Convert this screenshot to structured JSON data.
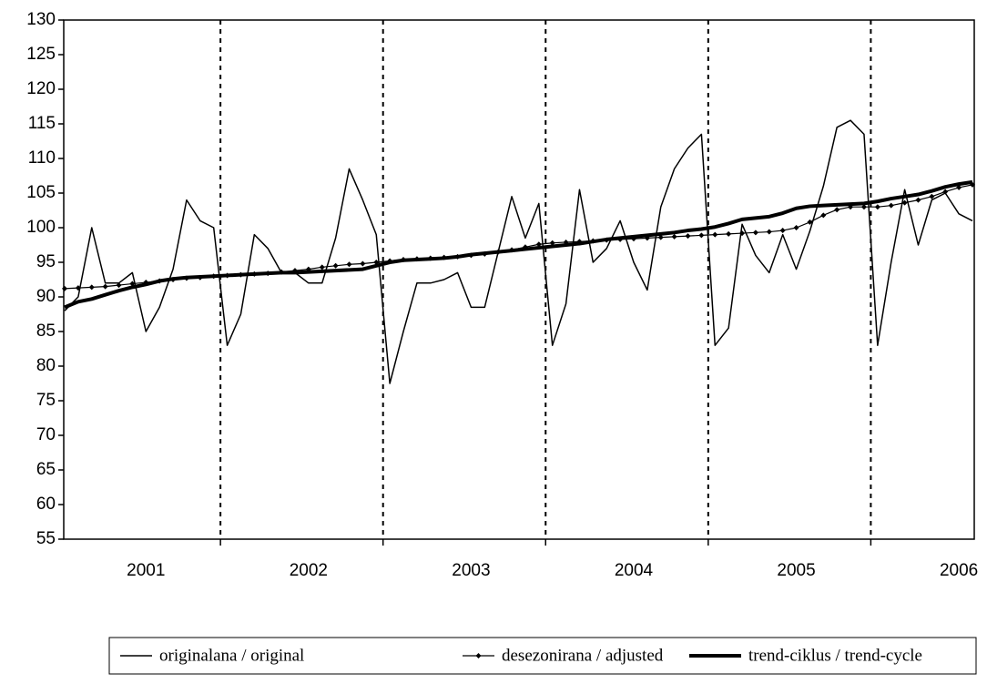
{
  "chart_data": {
    "type": "line",
    "categories": [
      null,
      null,
      null,
      null,
      null,
      null,
      "2001",
      null,
      null,
      null,
      null,
      null,
      null,
      null,
      null,
      null,
      null,
      null,
      "2002",
      null,
      null,
      null,
      null,
      null,
      null,
      null,
      null,
      null,
      null,
      null,
      "2003",
      null,
      null,
      null,
      null,
      null,
      null,
      null,
      null,
      null,
      null,
      null,
      "2004",
      null,
      null,
      null,
      null,
      null,
      null,
      null,
      null,
      null,
      null,
      null,
      "2005",
      null,
      null,
      null,
      null,
      null,
      null,
      null,
      null,
      null,
      null,
      null,
      "2006",
      null
    ],
    "series": [
      {
        "name": "originalana / original",
        "color": "#000000",
        "line_width": 1.5,
        "marker": "none",
        "values": [
          88,
          90,
          100,
          92,
          92,
          93.5,
          85,
          88.5,
          94,
          104,
          101,
          100,
          83,
          87.5,
          99,
          97,
          93.5,
          93.5,
          92,
          92,
          98.5,
          108.5,
          104,
          99,
          77.5,
          85,
          92,
          92,
          92.5,
          93.5,
          88.5,
          88.5,
          96.5,
          104.5,
          98.5,
          103.5,
          83,
          89,
          105.5,
          95,
          97,
          101,
          95,
          91,
          103,
          108.5,
          111.5,
          113.5,
          83,
          85.5,
          100.5,
          96,
          93.5,
          99,
          94,
          99.5,
          106,
          114.5,
          115.5,
          113.5,
          83,
          95,
          105.5,
          97.5,
          104,
          105,
          102,
          101
        ]
      },
      {
        "name": "desezonirana / adjusted",
        "color": "#000000",
        "line_width": 1.2,
        "marker": "diamond",
        "values": [
          91.2,
          91.3,
          91.4,
          91.5,
          91.7,
          91.9,
          92.1,
          92.3,
          92.5,
          92.7,
          92.8,
          93.0,
          93.1,
          93.2,
          93.3,
          93.4,
          93.6,
          93.8,
          94.0,
          94.3,
          94.5,
          94.7,
          94.8,
          95.0,
          95.2,
          95.4,
          95.5,
          95.6,
          95.7,
          95.8,
          96.0,
          96.2,
          96.5,
          96.8,
          97.2,
          97.6,
          97.8,
          97.9,
          98.0,
          98.1,
          98.2,
          98.3,
          98.4,
          98.5,
          98.6,
          98.7,
          98.8,
          98.9,
          99.0,
          99.1,
          99.2,
          99.3,
          99.4,
          99.6,
          100.0,
          100.8,
          101.8,
          102.6,
          103.0,
          103.0,
          103.0,
          103.2,
          103.6,
          104.0,
          104.5,
          105.2,
          105.8,
          106.2
        ]
      },
      {
        "name": "trend-ciklus / trend-cycle",
        "color": "#000000",
        "line_width": 4,
        "marker": "none",
        "values": [
          88.5,
          89.3,
          89.7,
          90.3,
          90.9,
          91.4,
          91.8,
          92.3,
          92.6,
          92.8,
          92.9,
          93.0,
          93.1,
          93.2,
          93.3,
          93.4,
          93.5,
          93.5,
          93.6,
          93.7,
          93.8,
          93.9,
          94.0,
          94.5,
          95.0,
          95.3,
          95.4,
          95.5,
          95.6,
          95.8,
          96.1,
          96.3,
          96.5,
          96.7,
          96.9,
          97.1,
          97.3,
          97.5,
          97.7,
          98.0,
          98.3,
          98.5,
          98.7,
          98.9,
          99.1,
          99.3,
          99.6,
          99.8,
          100.1,
          100.6,
          101.2,
          101.4,
          101.6,
          102.1,
          102.8,
          103.1,
          103.2,
          103.3,
          103.4,
          103.5,
          103.8,
          104.2,
          104.5,
          104.8,
          105.3,
          105.9,
          106.3,
          106.6
        ]
      }
    ],
    "ylim": [
      55,
      130
    ],
    "yticks": [
      55,
      60,
      65,
      70,
      75,
      80,
      85,
      90,
      95,
      100,
      105,
      110,
      115,
      120,
      125,
      130
    ],
    "grid": false,
    "legend": "bottom"
  }
}
